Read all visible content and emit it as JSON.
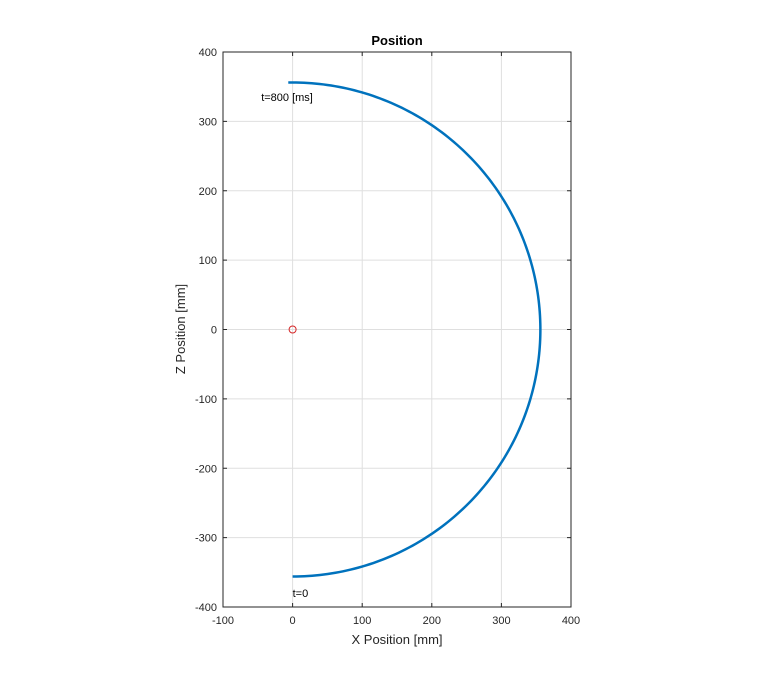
{
  "chart_data": {
    "type": "line",
    "title": "Position",
    "xlabel": "X Position [mm]",
    "ylabel": "Z Position [mm]",
    "xlim": [
      -100,
      400
    ],
    "ylim": [
      -400,
      400
    ],
    "xticks": [
      -100,
      0,
      100,
      200,
      300,
      400
    ],
    "yticks": [
      -400,
      -300,
      -200,
      -100,
      0,
      100,
      200,
      300,
      400
    ],
    "grid": true,
    "series": [
      {
        "name": "trajectory",
        "color": "#0072BD",
        "shape": "arc",
        "radius": 356,
        "start_angle_deg": -90,
        "end_angle_deg": 91
      }
    ],
    "markers": [
      {
        "name": "origin",
        "x": 0,
        "y": 0,
        "color": "#D62728",
        "symbol": "circle"
      }
    ],
    "annotations": [
      {
        "text": "t=800 [ms]",
        "x": -8,
        "y": 335
      },
      {
        "text": "t=0",
        "x": 0,
        "y": -380
      }
    ]
  }
}
